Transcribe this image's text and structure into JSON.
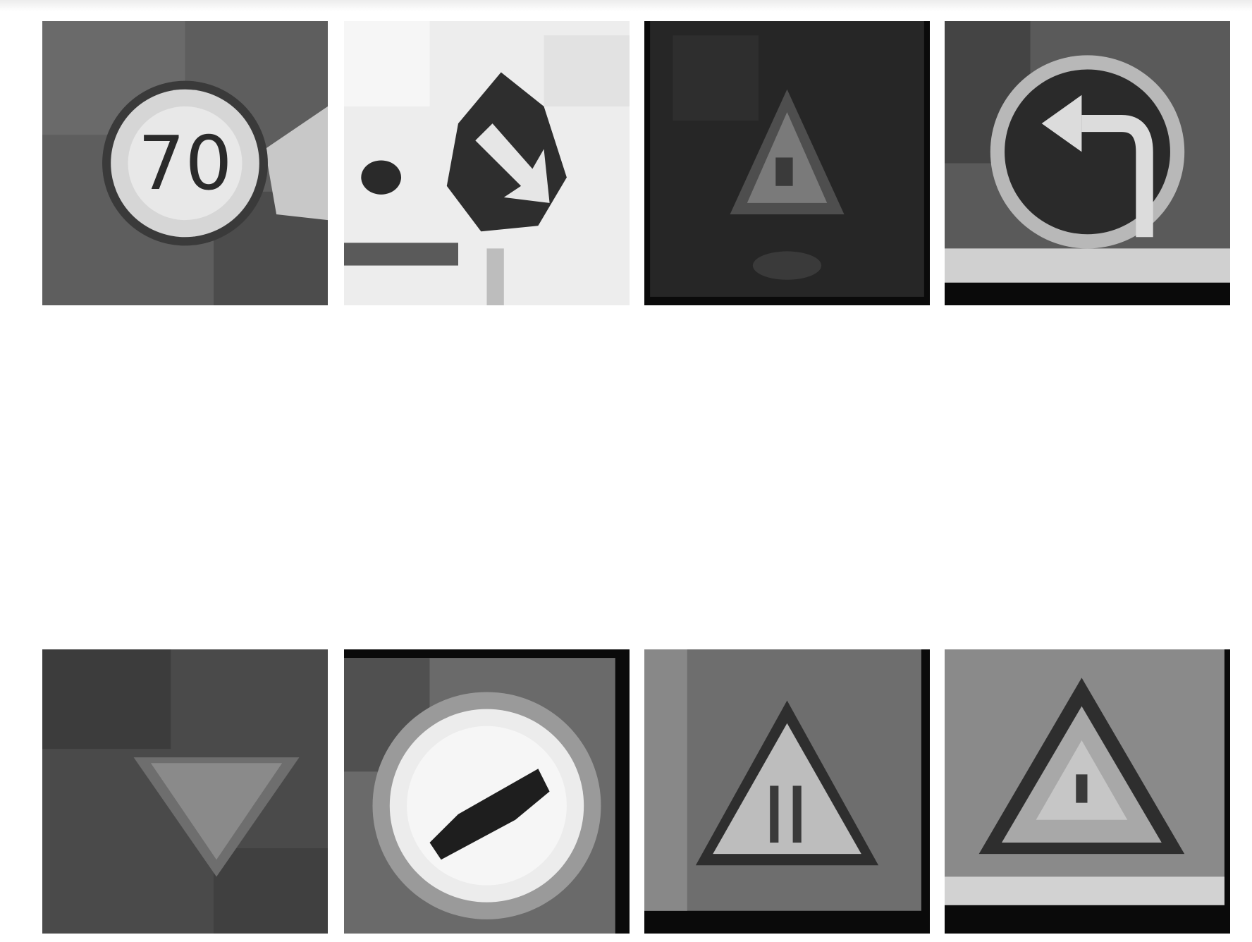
{
  "grid": {
    "rows": 2,
    "columns": 4,
    "tiles": [
      {
        "row": 1,
        "col": 1,
        "subject": "speed-limit-70-sign",
        "sign_text": "70"
      },
      {
        "row": 1,
        "col": 2,
        "subject": "keep-right-sign"
      },
      {
        "row": 1,
        "col": 3,
        "subject": "warning-triangle-sign"
      },
      {
        "row": 1,
        "col": 4,
        "subject": "turn-left-ahead-sign"
      },
      {
        "row": 2,
        "col": 1,
        "subject": "yield-sign"
      },
      {
        "row": 2,
        "col": 2,
        "subject": "end-of-restriction-sign"
      },
      {
        "row": 2,
        "col": 3,
        "subject": "road-work-sign"
      },
      {
        "row": 2,
        "col": 4,
        "subject": "warning-triangle-sign"
      }
    ]
  },
  "colors": {
    "background": "#ffffff",
    "black_border": "#0a0a0a"
  }
}
